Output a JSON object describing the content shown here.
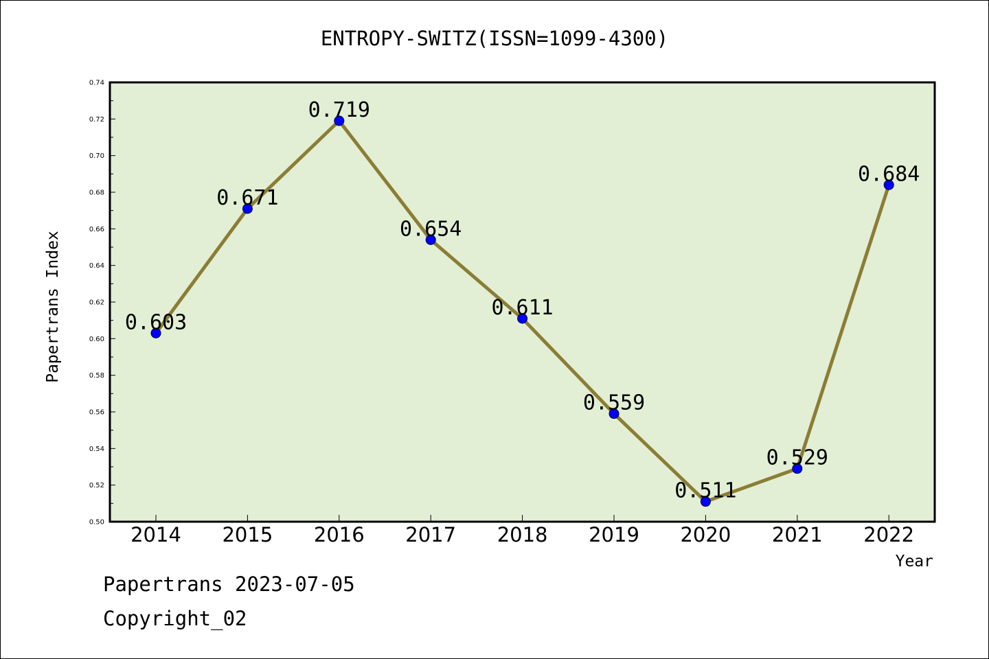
{
  "chart_data": {
    "type": "line",
    "title": "ENTROPY-SWITZ(ISSN=1099-4300)",
    "xlabel": "Year",
    "ylabel": "Papertrans Index",
    "categories": [
      "2014",
      "2015",
      "2016",
      "2017",
      "2018",
      "2019",
      "2020",
      "2021",
      "2022"
    ],
    "values": [
      0.603,
      0.671,
      0.719,
      0.654,
      0.611,
      0.559,
      0.511,
      0.529,
      0.684
    ],
    "data_labels": [
      "0.603",
      "0.671",
      "0.719",
      "0.654",
      "0.611",
      "0.559",
      "0.511",
      "0.529",
      "0.684"
    ],
    "ylim": [
      0.5,
      0.74
    ],
    "yticks": [
      "0.50",
      "0.52",
      "0.54",
      "0.56",
      "0.58",
      "0.60",
      "0.62",
      "0.64",
      "0.66",
      "0.68",
      "0.70",
      "0.72",
      "0.74"
    ],
    "grid": false,
    "colors": {
      "plot_background": "#e2efd5",
      "line": "#8b7d35",
      "marker": "#0000ff"
    }
  },
  "footer": {
    "line1": "Papertrans 2023-07-05",
    "line2": "Copyright_02"
  }
}
